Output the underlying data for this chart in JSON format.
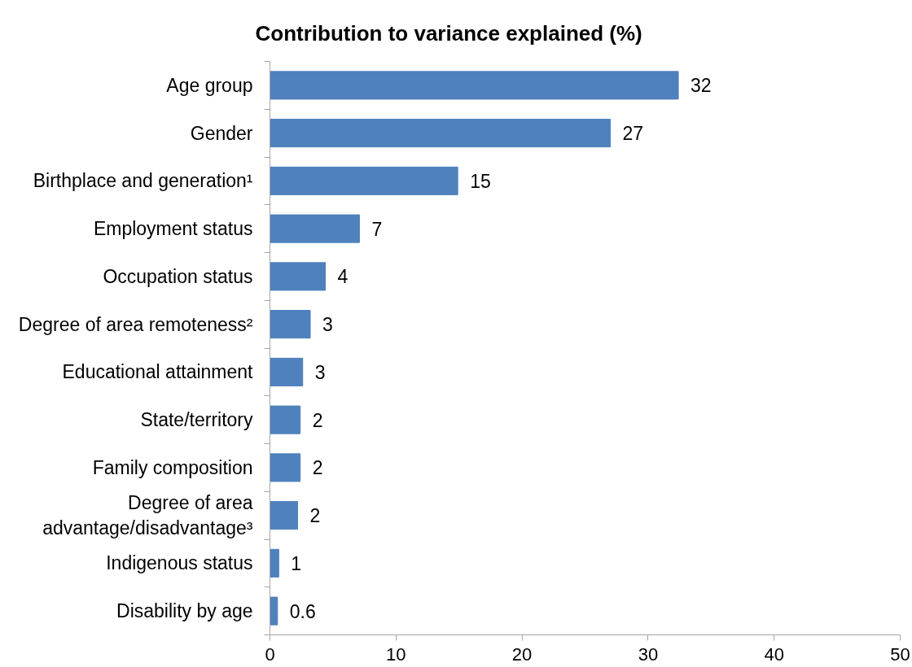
{
  "chart_data": {
    "type": "bar",
    "orientation": "horizontal",
    "title": "Contribution to variance explained (%)",
    "categories": [
      "Age group",
      "Gender",
      "Birthplace and generation¹",
      "Employment status",
      "Occupation status",
      "Degree of area remoteness²",
      "Educational attainment",
      "State/territory",
      "Family composition",
      "Degree of area advantage/disadvantage³",
      "Indigenous status",
      "Disability by age"
    ],
    "values": [
      32.4,
      27,
      14.9,
      7.1,
      4.4,
      3.2,
      2.6,
      2.4,
      2.4,
      2.2,
      0.7,
      0.6
    ],
    "value_labels": [
      "32",
      "27",
      "15",
      "7",
      "4",
      "3",
      "3",
      "2",
      "2",
      "2",
      "1",
      "0.6"
    ],
    "color": "#4f81bd",
    "xlim": [
      0,
      50
    ],
    "xticks": [
      0,
      10,
      20,
      30,
      40,
      50
    ]
  }
}
